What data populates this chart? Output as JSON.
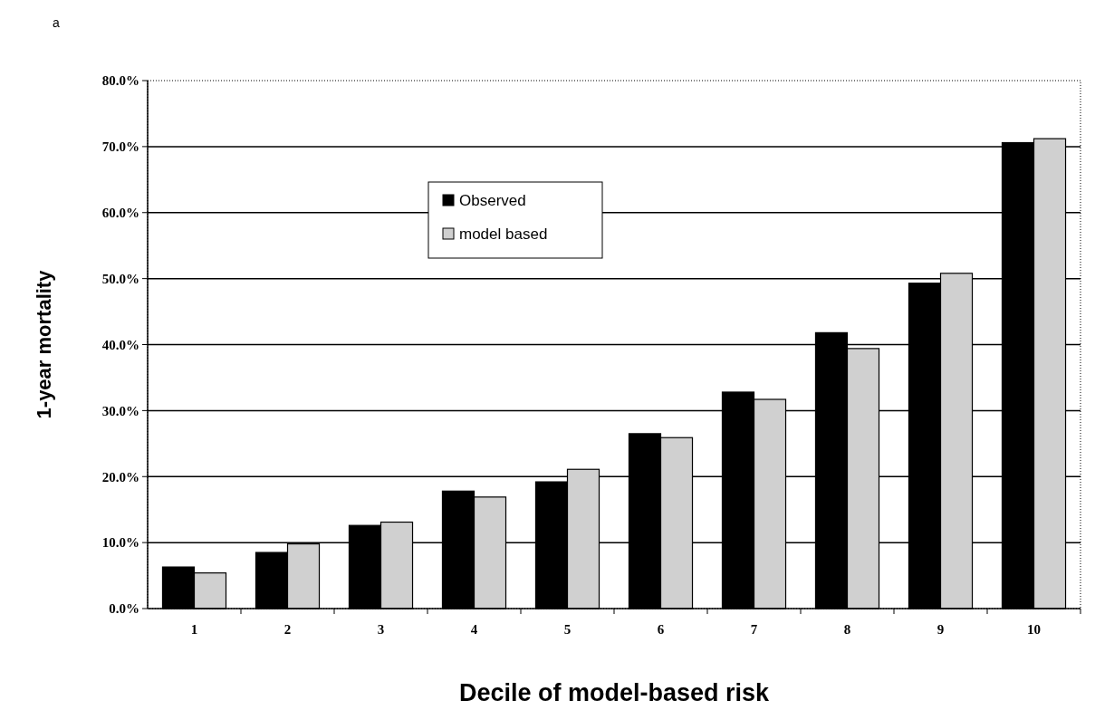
{
  "chart_data": {
    "type": "bar",
    "xlabel": "Decile of model-based risk",
    "ylabel": "1-year mortality",
    "annotations": [
      "a"
    ],
    "categories": [
      "1",
      "2",
      "3",
      "4",
      "5",
      "6",
      "7",
      "8",
      "9",
      "10"
    ],
    "series": [
      {
        "name": "Observed",
        "color": "#000000",
        "values": [
          6.3,
          8.5,
          12.6,
          17.8,
          19.2,
          26.5,
          32.8,
          41.8,
          49.3,
          70.6
        ]
      },
      {
        "name": "model based",
        "color": "#d0d0d0",
        "values": [
          5.4,
          9.8,
          13.1,
          16.9,
          21.1,
          25.9,
          31.7,
          39.4,
          50.8,
          71.2
        ]
      }
    ],
    "ylim": [
      0,
      80
    ],
    "yticks": [
      {
        "value": 0,
        "label": "0.0%"
      },
      {
        "value": 10,
        "label": "10.0%"
      },
      {
        "value": 20,
        "label": "20.0%"
      },
      {
        "value": 30,
        "label": "30.0%"
      },
      {
        "value": 40,
        "label": "40.0%"
      },
      {
        "value": 50,
        "label": "50.0%"
      },
      {
        "value": 60,
        "label": "60.0%"
      },
      {
        "value": 70,
        "label": "70.0%"
      },
      {
        "value": 80,
        "label": "80.0%"
      }
    ],
    "grid": "y",
    "legend": "top left"
  }
}
